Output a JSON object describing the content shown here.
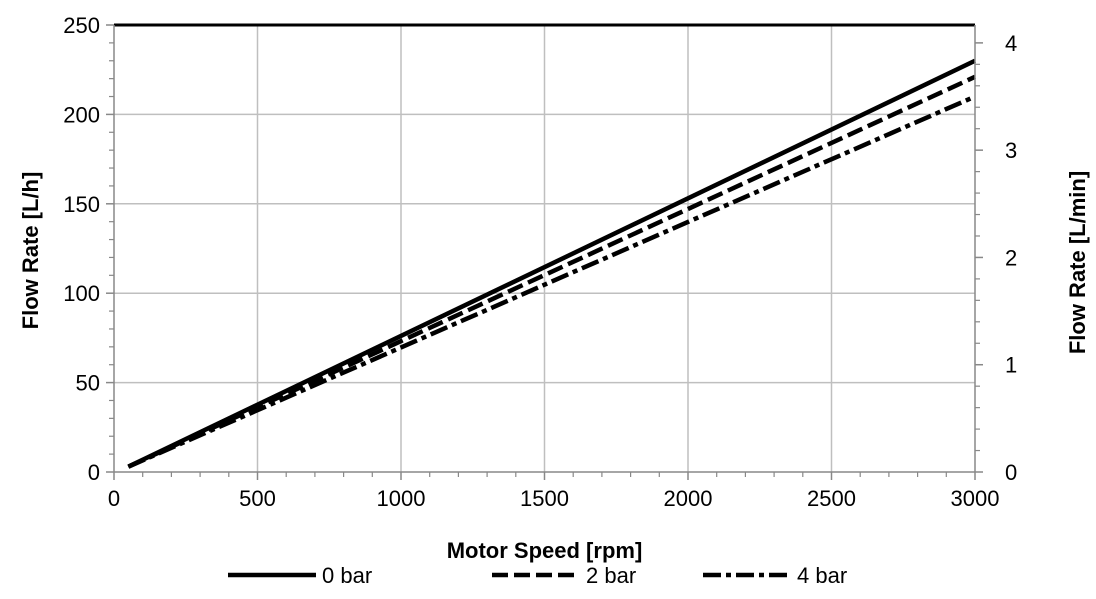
{
  "chart_data": {
    "type": "line",
    "x": [
      50,
      3000
    ],
    "series": [
      {
        "name": "0 bar",
        "values": [
          3,
          230
        ],
        "dash": "solid"
      },
      {
        "name": "2 bar",
        "values": [
          3,
          221
        ],
        "dash": "dashed"
      },
      {
        "name": "4 bar",
        "values": [
          3,
          210
        ],
        "dash": "dashdot"
      }
    ],
    "xlabel": "Motor Speed [rpm]",
    "ylabel": "Flow Rate [L/h]",
    "y2label": "Flow Rate [L/min]",
    "xlim": [
      0,
      3000
    ],
    "ylim": [
      0,
      250
    ],
    "y2lim": [
      0,
      4.1667
    ],
    "xticks": [
      "0",
      "500",
      "1000",
      "1500",
      "2000",
      "2500",
      "3000"
    ],
    "yticks": [
      "0",
      "50",
      "100",
      "150",
      "200",
      "250"
    ],
    "y2ticks": [
      "0",
      "1",
      "2",
      "3",
      "4"
    ],
    "grid": true,
    "legend_position": "bottom",
    "line_color": "#000000"
  }
}
